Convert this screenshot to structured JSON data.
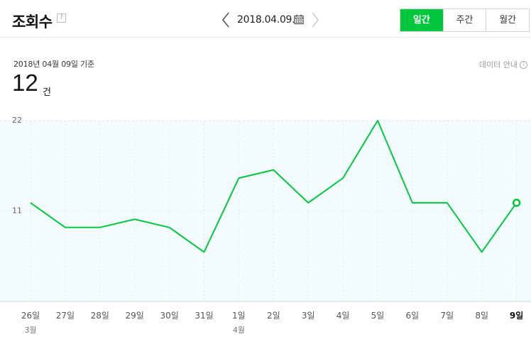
{
  "header": {
    "title": "조회수",
    "help": "?",
    "date": "2018.04.09.",
    "tabs": [
      {
        "label": "일간",
        "active": true
      },
      {
        "label": "주간",
        "active": false
      },
      {
        "label": "월간",
        "active": false
      }
    ]
  },
  "summary": {
    "basis": "2018년 04월 09일 기준",
    "count": "12",
    "unit": "건",
    "data_guide": "데이터 안내",
    "info": "i"
  },
  "colors": {
    "accent": "#00c73c",
    "plot_bg": "#f3fbfe"
  },
  "chart_data": {
    "type": "line",
    "title": "",
    "xlabel": "",
    "ylabel": "",
    "ylim": [
      0,
      22
    ],
    "yticks": [
      "22",
      "11"
    ],
    "categories": [
      "26일",
      "27일",
      "28일",
      "29일",
      "30일",
      "31일",
      "1일",
      "2일",
      "3일",
      "4일",
      "5일",
      "6일",
      "7일",
      "8일",
      "9일"
    ],
    "month_labels": [
      {
        "index": 0,
        "label": "3월"
      },
      {
        "index": 6,
        "label": "4월"
      }
    ],
    "values": [
      12,
      9,
      9,
      10,
      9,
      6,
      15,
      16,
      12,
      15,
      22,
      12,
      12,
      6,
      12
    ],
    "highlight_index": 14
  }
}
